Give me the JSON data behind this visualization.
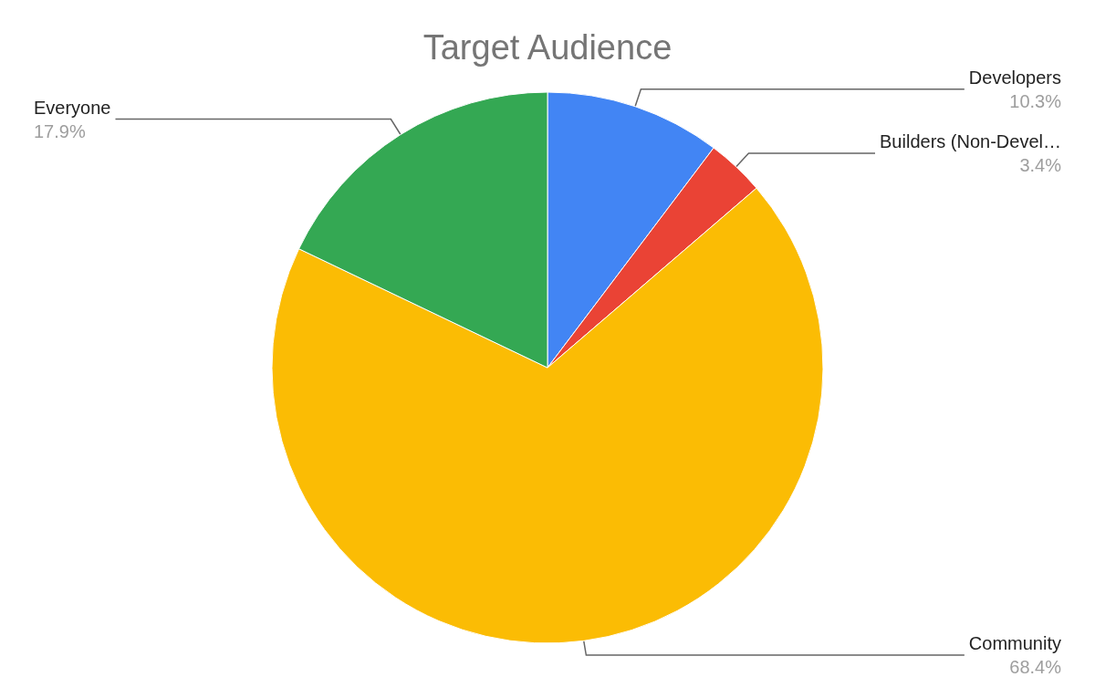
{
  "chart_data": {
    "type": "pie",
    "title": "Target Audience",
    "categories": [
      "Developers",
      "Builders (Non-Devel…",
      "Community",
      "Everyone"
    ],
    "values": [
      10.3,
      3.4,
      68.4,
      17.9
    ],
    "value_labels": [
      "10.3%",
      "3.4%",
      "68.4%",
      "17.9%"
    ],
    "colors": [
      "#4285f4",
      "#ea4335",
      "#fbbc04",
      "#34a853"
    ],
    "legend": false
  }
}
